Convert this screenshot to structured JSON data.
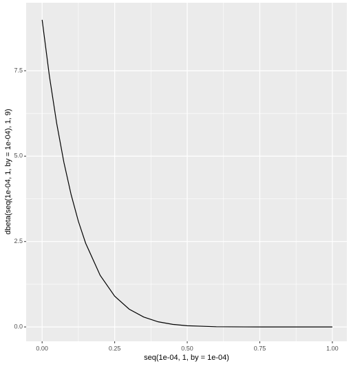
{
  "chart_data": {
    "type": "line",
    "x_label": "seq(1e-04, 1, by = 1e-04)",
    "y_label": "dbeta(seq(1e-04, 1, by = 1e-04), 1, 9)",
    "x": [
      0.0001,
      0.025,
      0.05,
      0.075,
      0.1,
      0.125,
      0.15,
      0.2,
      0.25,
      0.3,
      0.35,
      0.4,
      0.45,
      0.5,
      0.6,
      0.7,
      0.8,
      0.9,
      1.0
    ],
    "series": [
      {
        "color": "#000000",
        "values": [
          8.99,
          7.35,
          5.97,
          4.82,
          3.87,
          3.09,
          2.45,
          1.51,
          0.9,
          0.52,
          0.29,
          0.15,
          0.075,
          0.035,
          0.006,
          0.0006,
          0,
          0,
          0
        ]
      }
    ],
    "xlim": [
      -0.055,
      1.05
    ],
    "ylim": [
      -0.42,
      9.49
    ],
    "xticks": [
      {
        "value": 0,
        "label": "0.00"
      },
      {
        "value": 0.25,
        "label": "0.25"
      },
      {
        "value": 0.5,
        "label": "0.50"
      },
      {
        "value": 0.75,
        "label": "0.75"
      },
      {
        "value": 1,
        "label": "1.00"
      }
    ],
    "yticks": [
      {
        "value": 0,
        "label": "0.0"
      },
      {
        "value": 2.5,
        "label": "2.5"
      },
      {
        "value": 5,
        "label": "5.0"
      },
      {
        "value": 7.5,
        "label": "7.5"
      }
    ],
    "grid": true
  }
}
